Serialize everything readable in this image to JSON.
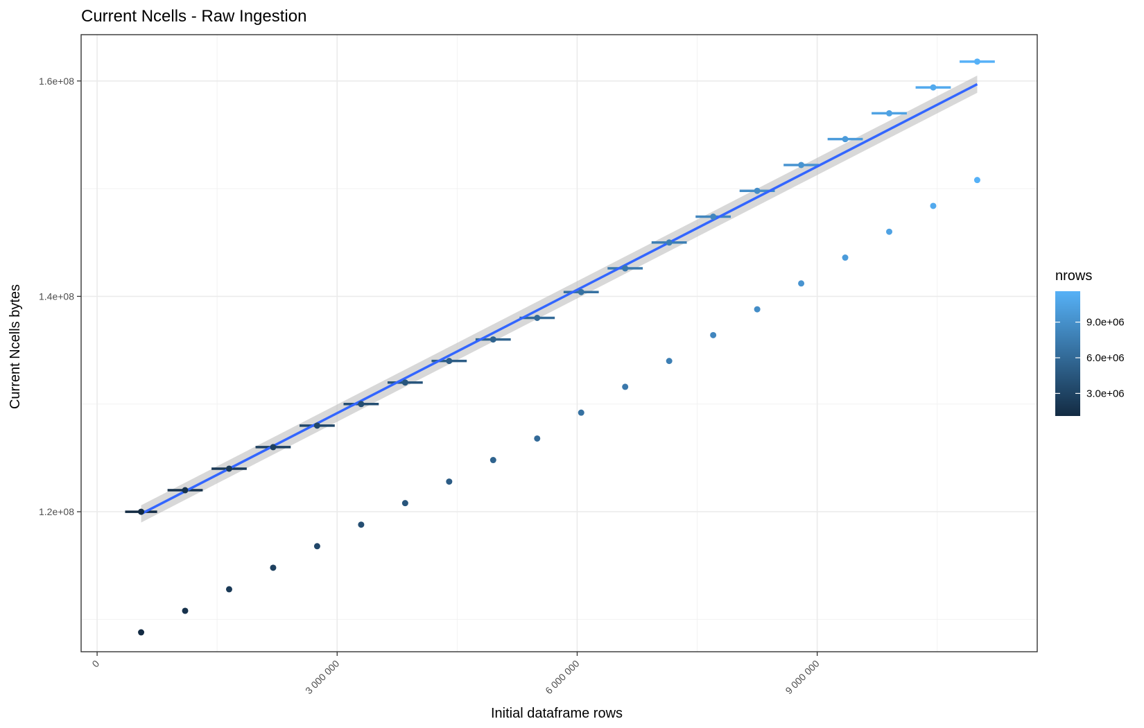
{
  "chart_data": {
    "type": "scatter",
    "title": "Current Ncells - Raw Ingestion",
    "xlabel": "Initial dataframe rows",
    "ylabel": "Current Ncells bytes",
    "xlim": [
      -200000,
      11750000
    ],
    "ylim": [
      107000000,
      164300000
    ],
    "x_ticks": [
      0,
      3000000,
      6000000,
      9000000
    ],
    "x_tick_labels": [
      "0",
      "3 000 000",
      "6 000 000",
      "9 000 000"
    ],
    "x_minor_ticks": [
      1500000,
      4500000,
      7500000,
      10500000
    ],
    "y_ticks": [
      120000000,
      140000000,
      160000000
    ],
    "y_tick_labels": [
      "1.2e+08",
      "1.4e+08",
      "1.6e+08"
    ],
    "y_minor_ticks": [
      110000000,
      130000000,
      150000000
    ],
    "grid": true,
    "colors": {
      "low": "#132b43",
      "high": "#56b1f7",
      "fit_line": "#3366ff",
      "ribbon": "#bebebe"
    },
    "legend": {
      "title": "nrows",
      "placement": "right",
      "labels": [
        "9.0e+06",
        "6.0e+06",
        "3.0e+06"
      ],
      "values": [
        9000000,
        6000000,
        3000000
      ],
      "range": [
        1100000,
        11600000
      ]
    },
    "series": [
      {
        "x": [
          550000,
          1100000,
          1650000,
          2200000,
          2750000,
          3300000,
          3850000,
          4400000,
          4950000,
          5500000,
          6050000,
          6600000,
          7150000,
          7700000,
          8250000,
          8800000,
          9350000,
          9900000,
          10450000,
          11000000
        ],
        "y": [
          120000000,
          122000000,
          124000000,
          126000000,
          128000000,
          130000000,
          132000000,
          134000000,
          136000000,
          138000000,
          140400000,
          142600000,
          145000000,
          147400000,
          149800000,
          152200000,
          154600000,
          157000000,
          159400000,
          161800000
        ],
        "xerr": [
          200000,
          220000,
          220000,
          220000,
          220000,
          220000,
          220000,
          220000,
          220000,
          220000,
          220000,
          220000,
          220000,
          220000,
          220000,
          220000,
          220000,
          220000,
          220000,
          220000
        ],
        "color_value": [
          1100000,
          1650000,
          2200000,
          2750000,
          3300000,
          3850000,
          4400000,
          4950000,
          5500000,
          6050000,
          6600000,
          7150000,
          7700000,
          8250000,
          8800000,
          9350000,
          9900000,
          10450000,
          11000000,
          11600000
        ]
      },
      {
        "x": [
          550000,
          1100000,
          1650000,
          2200000,
          2750000,
          3300000,
          3850000,
          4400000,
          4950000,
          5500000,
          6050000,
          6600000,
          7150000,
          7700000,
          8250000,
          8800000,
          9350000,
          9900000,
          10450000,
          11000000
        ],
        "y": [
          108800000,
          110800000,
          112800000,
          114800000,
          116800000,
          118800000,
          120800000,
          122800000,
          124800000,
          126800000,
          129200000,
          131600000,
          134000000,
          136400000,
          138800000,
          141200000,
          143600000,
          146000000,
          148400000,
          150800000
        ],
        "color_value": [
          1100000,
          1650000,
          2200000,
          2750000,
          3300000,
          3850000,
          4400000,
          4950000,
          5500000,
          6050000,
          6600000,
          7150000,
          7700000,
          8250000,
          8800000,
          9350000,
          9900000,
          10450000,
          11000000,
          11600000
        ]
      }
    ],
    "fit": {
      "method": "lm",
      "x": [
        550000,
        11000000
      ],
      "y": [
        119800000,
        159700000
      ],
      "se_band": [
        [
          119000000,
          120600000
        ],
        [
          158900000,
          160500000
        ]
      ]
    }
  }
}
